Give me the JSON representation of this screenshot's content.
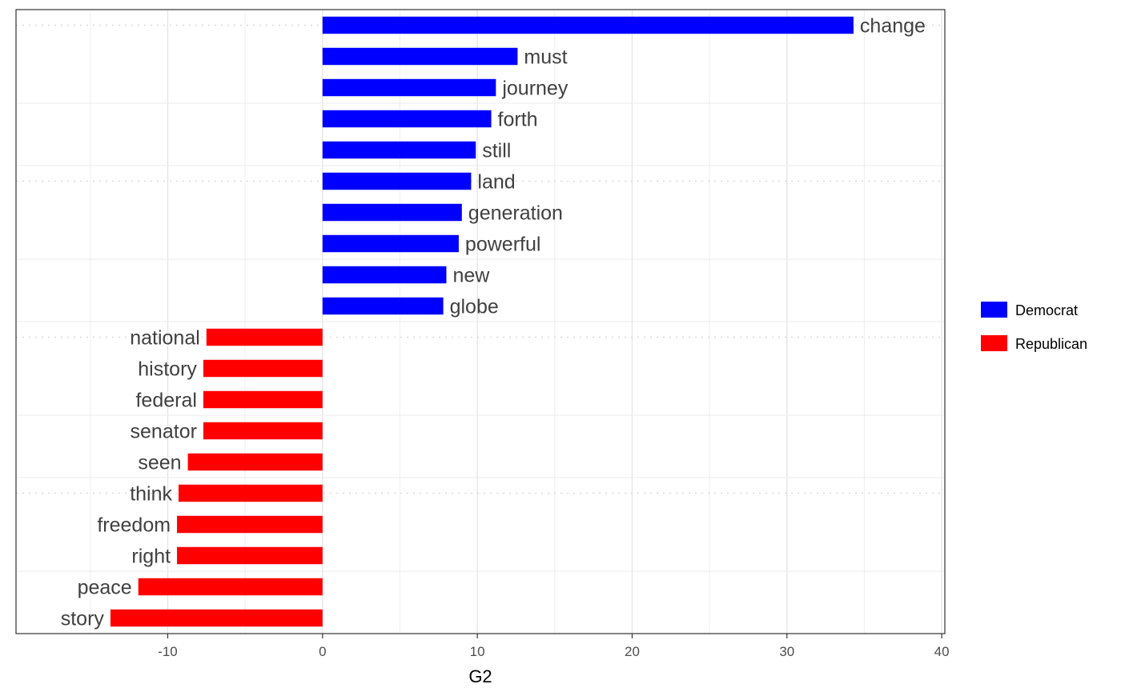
{
  "chart_data": {
    "type": "bar",
    "orientation": "horizontal",
    "xlabel": "G2",
    "ylabel": "",
    "xlim": [
      -19.8,
      40.2
    ],
    "x_ticks": [
      -10,
      0,
      10,
      20,
      30,
      40
    ],
    "x_tick_labels": [
      "-10",
      "0",
      "10",
      "20",
      "30",
      "40"
    ],
    "grid": true,
    "legend_position": "right",
    "series": [
      {
        "name": "Democrat",
        "color": "#0000FF"
      },
      {
        "name": "Republican",
        "color": "#FF0000"
      }
    ],
    "bars": [
      {
        "label": "change",
        "value": 34.3,
        "series": "Democrat"
      },
      {
        "label": "must",
        "value": 12.6,
        "series": "Democrat"
      },
      {
        "label": "journey",
        "value": 11.2,
        "series": "Democrat"
      },
      {
        "label": "forth",
        "value": 10.9,
        "series": "Democrat"
      },
      {
        "label": "still",
        "value": 9.9,
        "series": "Democrat"
      },
      {
        "label": "land",
        "value": 9.6,
        "series": "Democrat"
      },
      {
        "label": "generation",
        "value": 9.0,
        "series": "Democrat"
      },
      {
        "label": "powerful",
        "value": 8.8,
        "series": "Democrat"
      },
      {
        "label": "new",
        "value": 8.0,
        "series": "Democrat"
      },
      {
        "label": "globe",
        "value": 7.8,
        "series": "Democrat"
      },
      {
        "label": "national",
        "value": -7.5,
        "series": "Republican"
      },
      {
        "label": "history",
        "value": -7.7,
        "series": "Republican"
      },
      {
        "label": "federal",
        "value": -7.7,
        "series": "Republican"
      },
      {
        "label": "senator",
        "value": -7.7,
        "series": "Republican"
      },
      {
        "label": "seen",
        "value": -8.7,
        "series": "Republican"
      },
      {
        "label": "think",
        "value": -9.3,
        "series": "Republican"
      },
      {
        "label": "freedom",
        "value": -9.4,
        "series": "Republican"
      },
      {
        "label": "right",
        "value": -9.4,
        "series": "Republican"
      },
      {
        "label": "peace",
        "value": -11.9,
        "series": "Republican"
      },
      {
        "label": "story",
        "value": -13.7,
        "series": "Republican"
      }
    ]
  }
}
